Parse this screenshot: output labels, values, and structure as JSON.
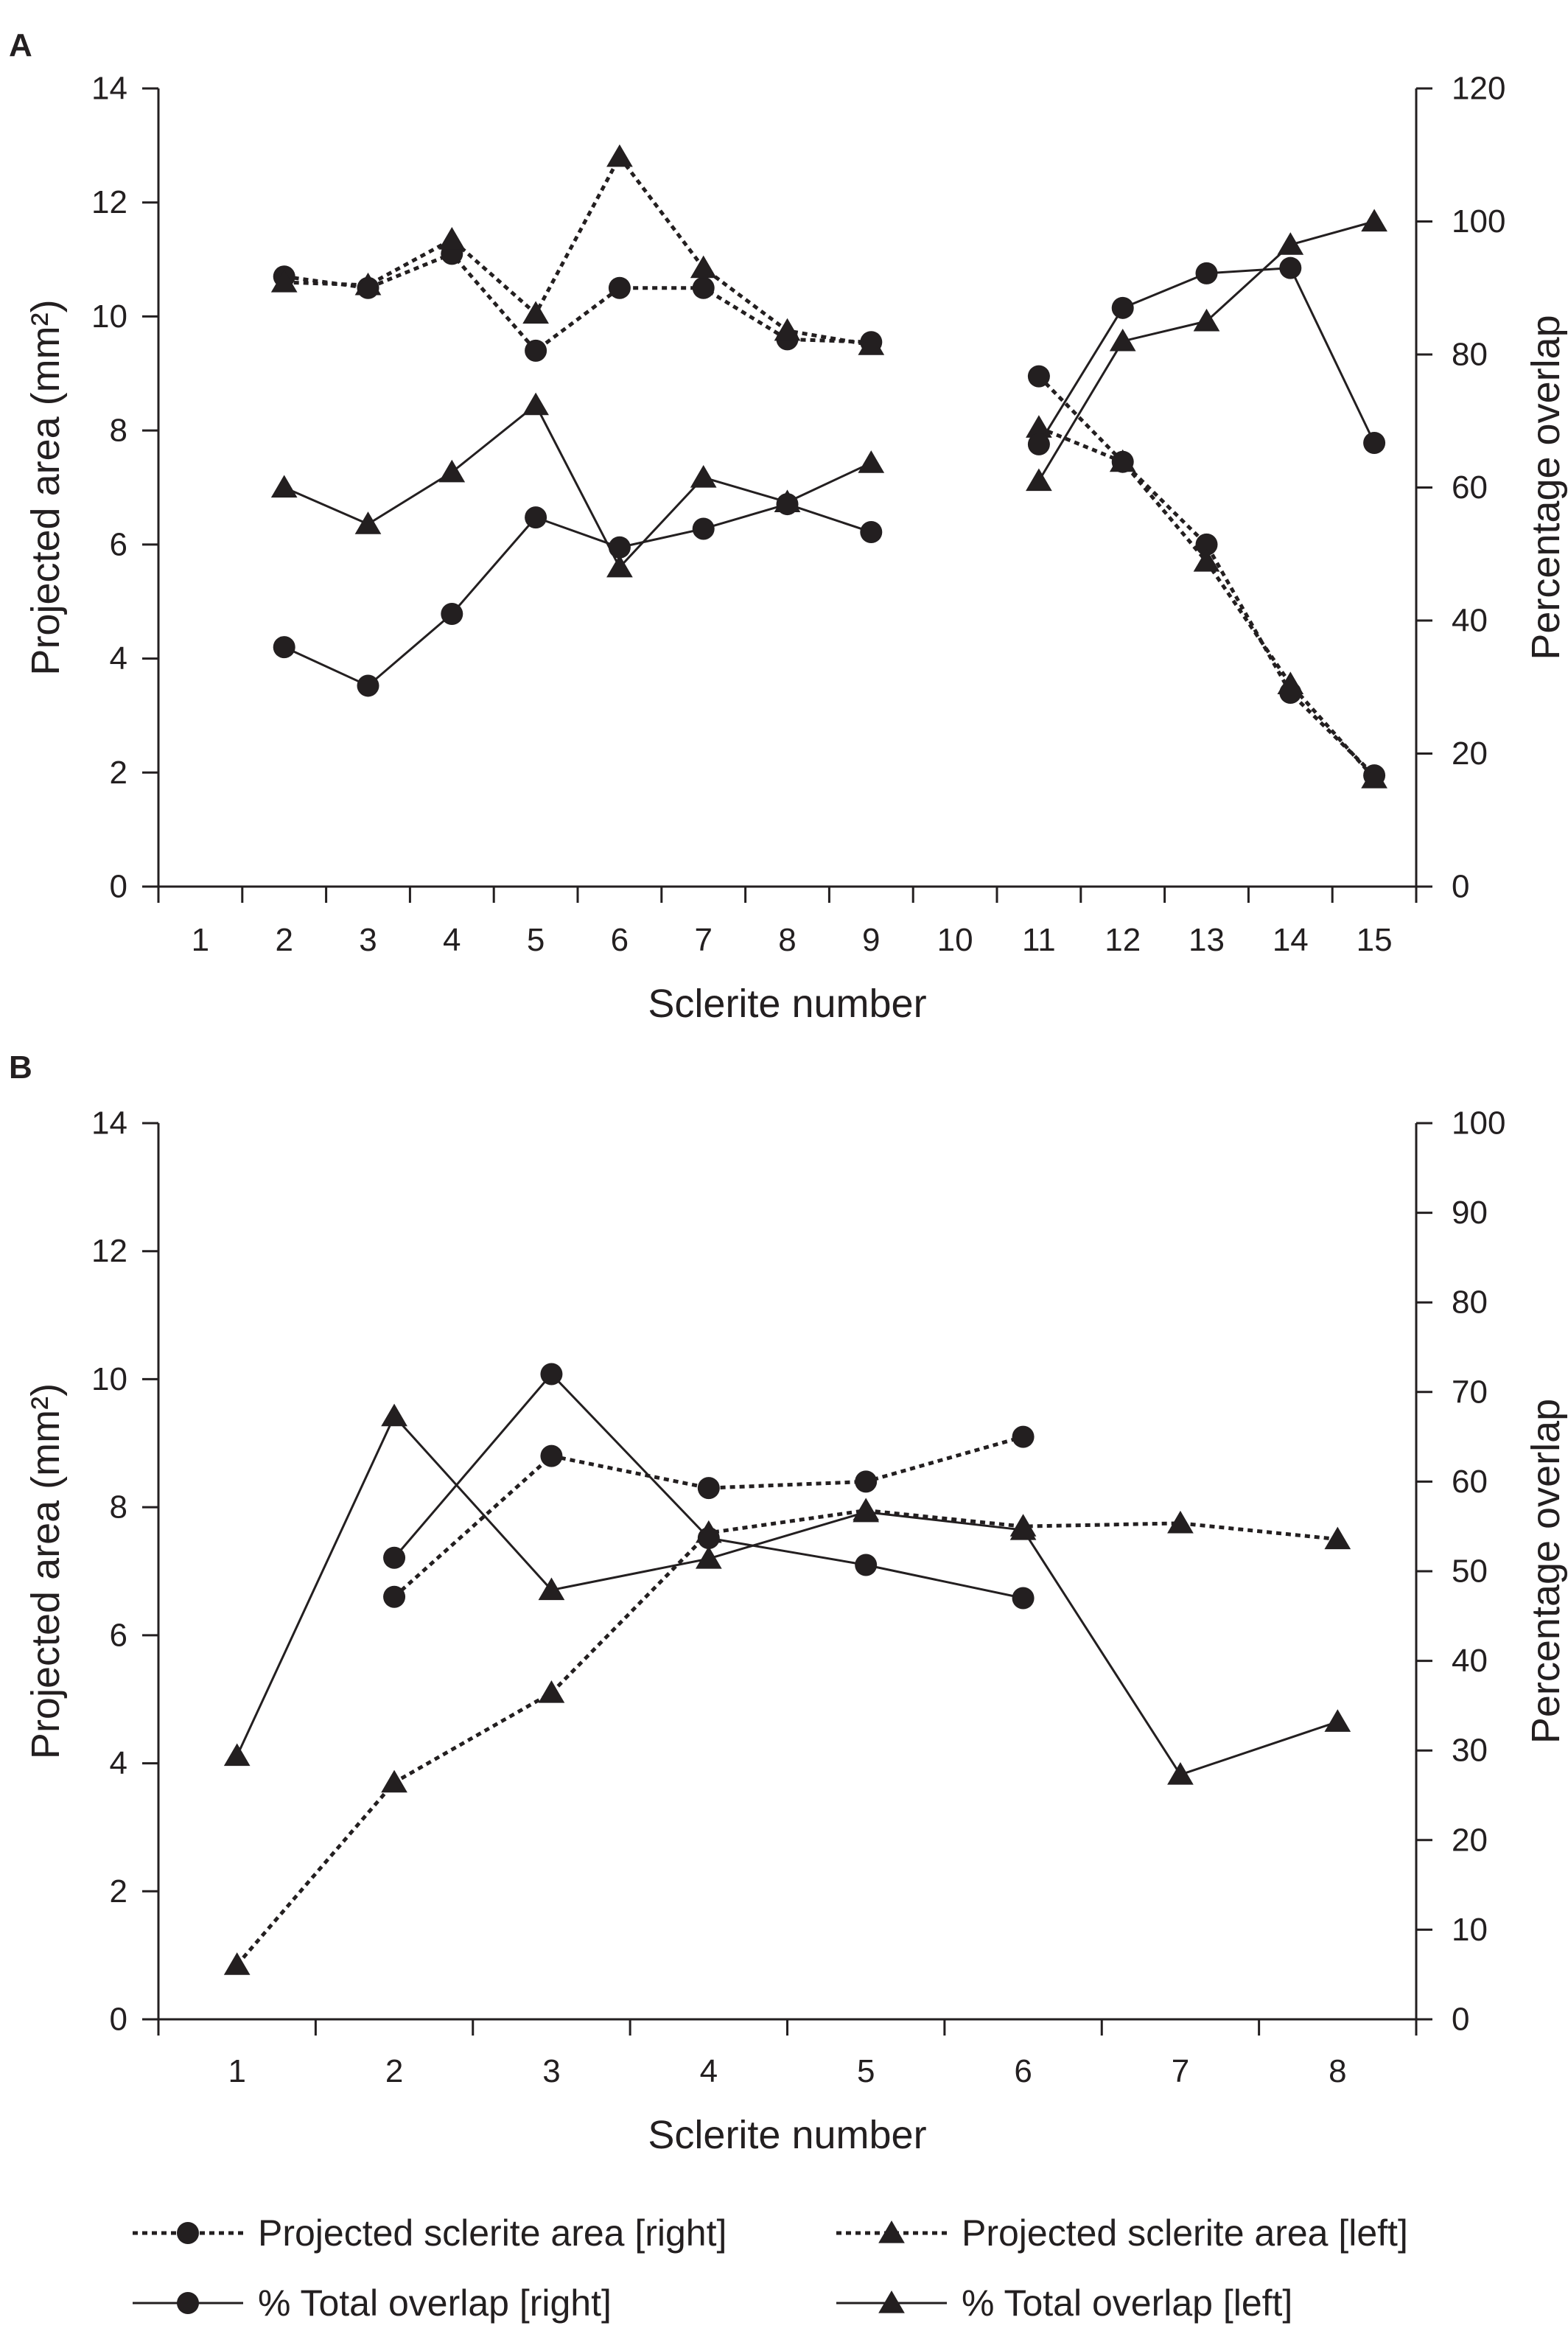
{
  "chart_data": [
    {
      "panel_label": "A",
      "type": "line",
      "xlabel": "Sclerite number",
      "ylabel": "Projected area (mm²)",
      "y2label": "Percentage overlap",
      "x_ticks": [
        1,
        2,
        3,
        4,
        5,
        6,
        7,
        8,
        9,
        10,
        11,
        12,
        13,
        14,
        15
      ],
      "ylim": [
        0,
        14
      ],
      "y_ticks": [
        0,
        2,
        4,
        6,
        8,
        10,
        12,
        14
      ],
      "y2lim": [
        0,
        120
      ],
      "y2_ticks": [
        0,
        20,
        40,
        60,
        80,
        100,
        120
      ],
      "grid": false,
      "series": [
        {
          "key": "area_right",
          "axis": "left",
          "style": "dotted",
          "marker": "circle",
          "points": [
            [
              2,
              10.7
            ],
            [
              3,
              10.5
            ],
            [
              4,
              11.1
            ],
            [
              5,
              9.4
            ],
            [
              6,
              10.5
            ],
            [
              7,
              10.5
            ],
            [
              8,
              9.6
            ],
            [
              9,
              9.55
            ],
            [
              11,
              8.95
            ],
            [
              12,
              7.45
            ],
            [
              13,
              6.0
            ],
            [
              14,
              3.4
            ],
            [
              15,
              1.95
            ]
          ]
        },
        {
          "key": "area_left",
          "axis": "left",
          "style": "dotted",
          "marker": "triangle",
          "points": [
            [
              2,
              10.6
            ],
            [
              3,
              10.55
            ],
            [
              4,
              11.35
            ],
            [
              5,
              10.05
            ],
            [
              6,
              12.8
            ],
            [
              7,
              10.85
            ],
            [
              8,
              9.75
            ],
            [
              9,
              9.5
            ],
            [
              11,
              8.05
            ],
            [
              12,
              7.45
            ],
            [
              13,
              5.7
            ],
            [
              14,
              3.55
            ],
            [
              15,
              1.9
            ]
          ]
        },
        {
          "key": "overlap_right",
          "axis": "right",
          "style": "solid",
          "marker": "circle",
          "points": [
            [
              2,
              36
            ],
            [
              3,
              30.2
            ],
            [
              4,
              41
            ],
            [
              5,
              55.5
            ],
            [
              6,
              51
            ],
            [
              7,
              53.8
            ],
            [
              8,
              57.5
            ],
            [
              9,
              53.3
            ],
            [
              11,
              66.5
            ],
            [
              12,
              87
            ],
            [
              13,
              92.2
            ],
            [
              14,
              93
            ],
            [
              15,
              66.7
            ]
          ]
        },
        {
          "key": "overlap_left",
          "axis": "right",
          "style": "solid",
          "marker": "triangle",
          "points": [
            [
              2,
              60
            ],
            [
              3,
              54.5
            ],
            [
              4,
              62.3
            ],
            [
              5,
              72.4
            ],
            [
              6,
              48
            ],
            [
              7,
              61.5
            ],
            [
              8,
              57.8
            ],
            [
              9,
              63.7
            ],
            [
              11,
              61
            ],
            [
              12,
              82
            ],
            [
              13,
              85
            ],
            [
              14,
              96.5
            ],
            [
              15,
              100
            ]
          ]
        }
      ]
    },
    {
      "panel_label": "B",
      "type": "line",
      "xlabel": "Sclerite number",
      "ylabel": "Projected area (mm²)",
      "y2label": "Percentage overlap",
      "x_ticks": [
        1,
        2,
        3,
        4,
        5,
        6,
        7,
        8
      ],
      "ylim": [
        0,
        14
      ],
      "y_ticks": [
        0,
        2,
        4,
        6,
        8,
        10,
        12,
        14
      ],
      "y2lim": [
        0,
        100
      ],
      "y2_ticks": [
        0,
        10,
        20,
        30,
        40,
        50,
        60,
        70,
        80,
        90,
        100
      ],
      "grid": false,
      "series": [
        {
          "key": "area_right",
          "axis": "left",
          "style": "dotted",
          "marker": "circle",
          "points": [
            [
              2,
              6.6
            ],
            [
              3,
              8.8
            ],
            [
              4,
              8.3
            ],
            [
              5,
              8.4
            ],
            [
              6,
              9.1
            ]
          ]
        },
        {
          "key": "area_left",
          "axis": "left",
          "style": "dotted",
          "marker": "triangle",
          "points": [
            [
              1,
              0.85
            ],
            [
              2,
              3.7
            ],
            [
              3,
              5.1
            ],
            [
              4,
              7.6
            ],
            [
              5,
              7.95
            ],
            [
              6,
              7.7
            ],
            [
              7,
              7.75
            ],
            [
              8,
              7.5
            ]
          ]
        },
        {
          "key": "overlap_right",
          "axis": "right",
          "style": "solid",
          "marker": "circle",
          "points": [
            [
              2,
              51.5
            ],
            [
              3,
              72
            ],
            [
              4,
              53.7
            ],
            [
              5,
              50.7
            ],
            [
              6,
              47
            ]
          ]
        },
        {
          "key": "overlap_left",
          "axis": "right",
          "style": "solid",
          "marker": "triangle",
          "points": [
            [
              1,
              29.4
            ],
            [
              2,
              67.3
            ],
            [
              3,
              47.9
            ],
            [
              4,
              51.4
            ],
            [
              5,
              56.6
            ],
            [
              6,
              54.6
            ],
            [
              7,
              27.3
            ],
            [
              8,
              33.2
            ]
          ]
        }
      ]
    }
  ],
  "legend": {
    "placement": "bottom",
    "entries": [
      {
        "key": "area_right",
        "label": "Projected sclerite area [right]",
        "style": "dotted",
        "marker": "circle"
      },
      {
        "key": "area_left",
        "label": "Projected sclerite area [left]",
        "style": "dotted",
        "marker": "triangle"
      },
      {
        "key": "overlap_right",
        "label": "% Total overlap [right]",
        "style": "solid",
        "marker": "circle"
      },
      {
        "key": "overlap_left",
        "label": "% Total overlap [left]",
        "style": "solid",
        "marker": "triangle"
      }
    ]
  },
  "colors": {
    "ink": "#231f20",
    "background": "#ffffff"
  }
}
